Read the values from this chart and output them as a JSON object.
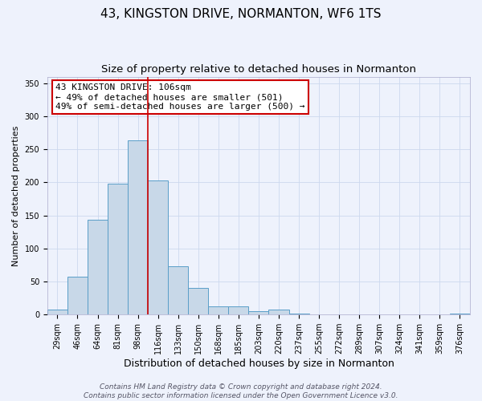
{
  "title_line1": "43, KINGSTON DRIVE, NORMANTON, WF6 1TS",
  "title_line2": "Size of property relative to detached houses in Normanton",
  "xlabel": "Distribution of detached houses by size in Normanton",
  "ylabel": "Number of detached properties",
  "categories": [
    "29sqm",
    "46sqm",
    "64sqm",
    "81sqm",
    "98sqm",
    "116sqm",
    "133sqm",
    "150sqm",
    "168sqm",
    "185sqm",
    "203sqm",
    "220sqm",
    "237sqm",
    "255sqm",
    "272sqm",
    "289sqm",
    "307sqm",
    "324sqm",
    "341sqm",
    "359sqm",
    "376sqm"
  ],
  "bar_heights": [
    8,
    57,
    143,
    198,
    263,
    203,
    73,
    40,
    12,
    12,
    5,
    8,
    2,
    0,
    0,
    0,
    0,
    0,
    0,
    0,
    2
  ],
  "bar_color": "#c8d8e8",
  "bar_edge_color": "#5a9ec8",
  "ylim": [
    0,
    360
  ],
  "yticks": [
    0,
    50,
    100,
    150,
    200,
    250,
    300,
    350
  ],
  "vline_x": 4.5,
  "vline_color": "#cc0000",
  "annotation_text": "43 KINGSTON DRIVE: 106sqm\n← 49% of detached houses are smaller (501)\n49% of semi-detached houses are larger (500) →",
  "annotation_box_color": "#ffffff",
  "annotation_border_color": "#cc0000",
  "grid_color": "#ccd8ee",
  "background_color": "#eef2fc",
  "footer_line1": "Contains HM Land Registry data © Crown copyright and database right 2024.",
  "footer_line2": "Contains public sector information licensed under the Open Government Licence v3.0.",
  "title_fontsize": 11,
  "subtitle_fontsize": 9.5,
  "xlabel_fontsize": 9,
  "ylabel_fontsize": 8,
  "tick_fontsize": 7,
  "annotation_fontsize": 8,
  "footer_fontsize": 6.5
}
